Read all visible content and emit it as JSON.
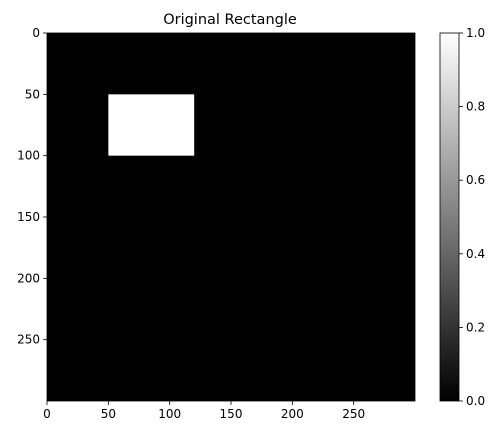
{
  "chart_data": {
    "type": "heatmap",
    "title": "Original Rectangle",
    "xlim": [
      0,
      300
    ],
    "ylim": [
      300,
      0
    ],
    "x_ticks": [
      0,
      50,
      100,
      150,
      200,
      250
    ],
    "x_tick_labels": [
      "0",
      "50",
      "100",
      "150",
      "200",
      "250"
    ],
    "y_ticks": [
      0,
      50,
      100,
      150,
      200,
      250
    ],
    "y_tick_labels": [
      "0",
      "50",
      "100",
      "150",
      "200",
      "250"
    ],
    "background_value": 0.0,
    "rectangle": {
      "value": 1.0,
      "x": [
        50,
        120
      ],
      "y": [
        50,
        100
      ]
    },
    "colormap": "gray",
    "colorbar": {
      "range": [
        0.0,
        1.0
      ],
      "ticks": [
        0.0,
        0.2,
        0.4,
        0.6,
        0.8,
        1.0
      ],
      "tick_labels": [
        "0.0",
        "0.2",
        "0.4",
        "0.6",
        "0.8",
        "1.0"
      ],
      "placement": "right"
    },
    "grid": false
  }
}
